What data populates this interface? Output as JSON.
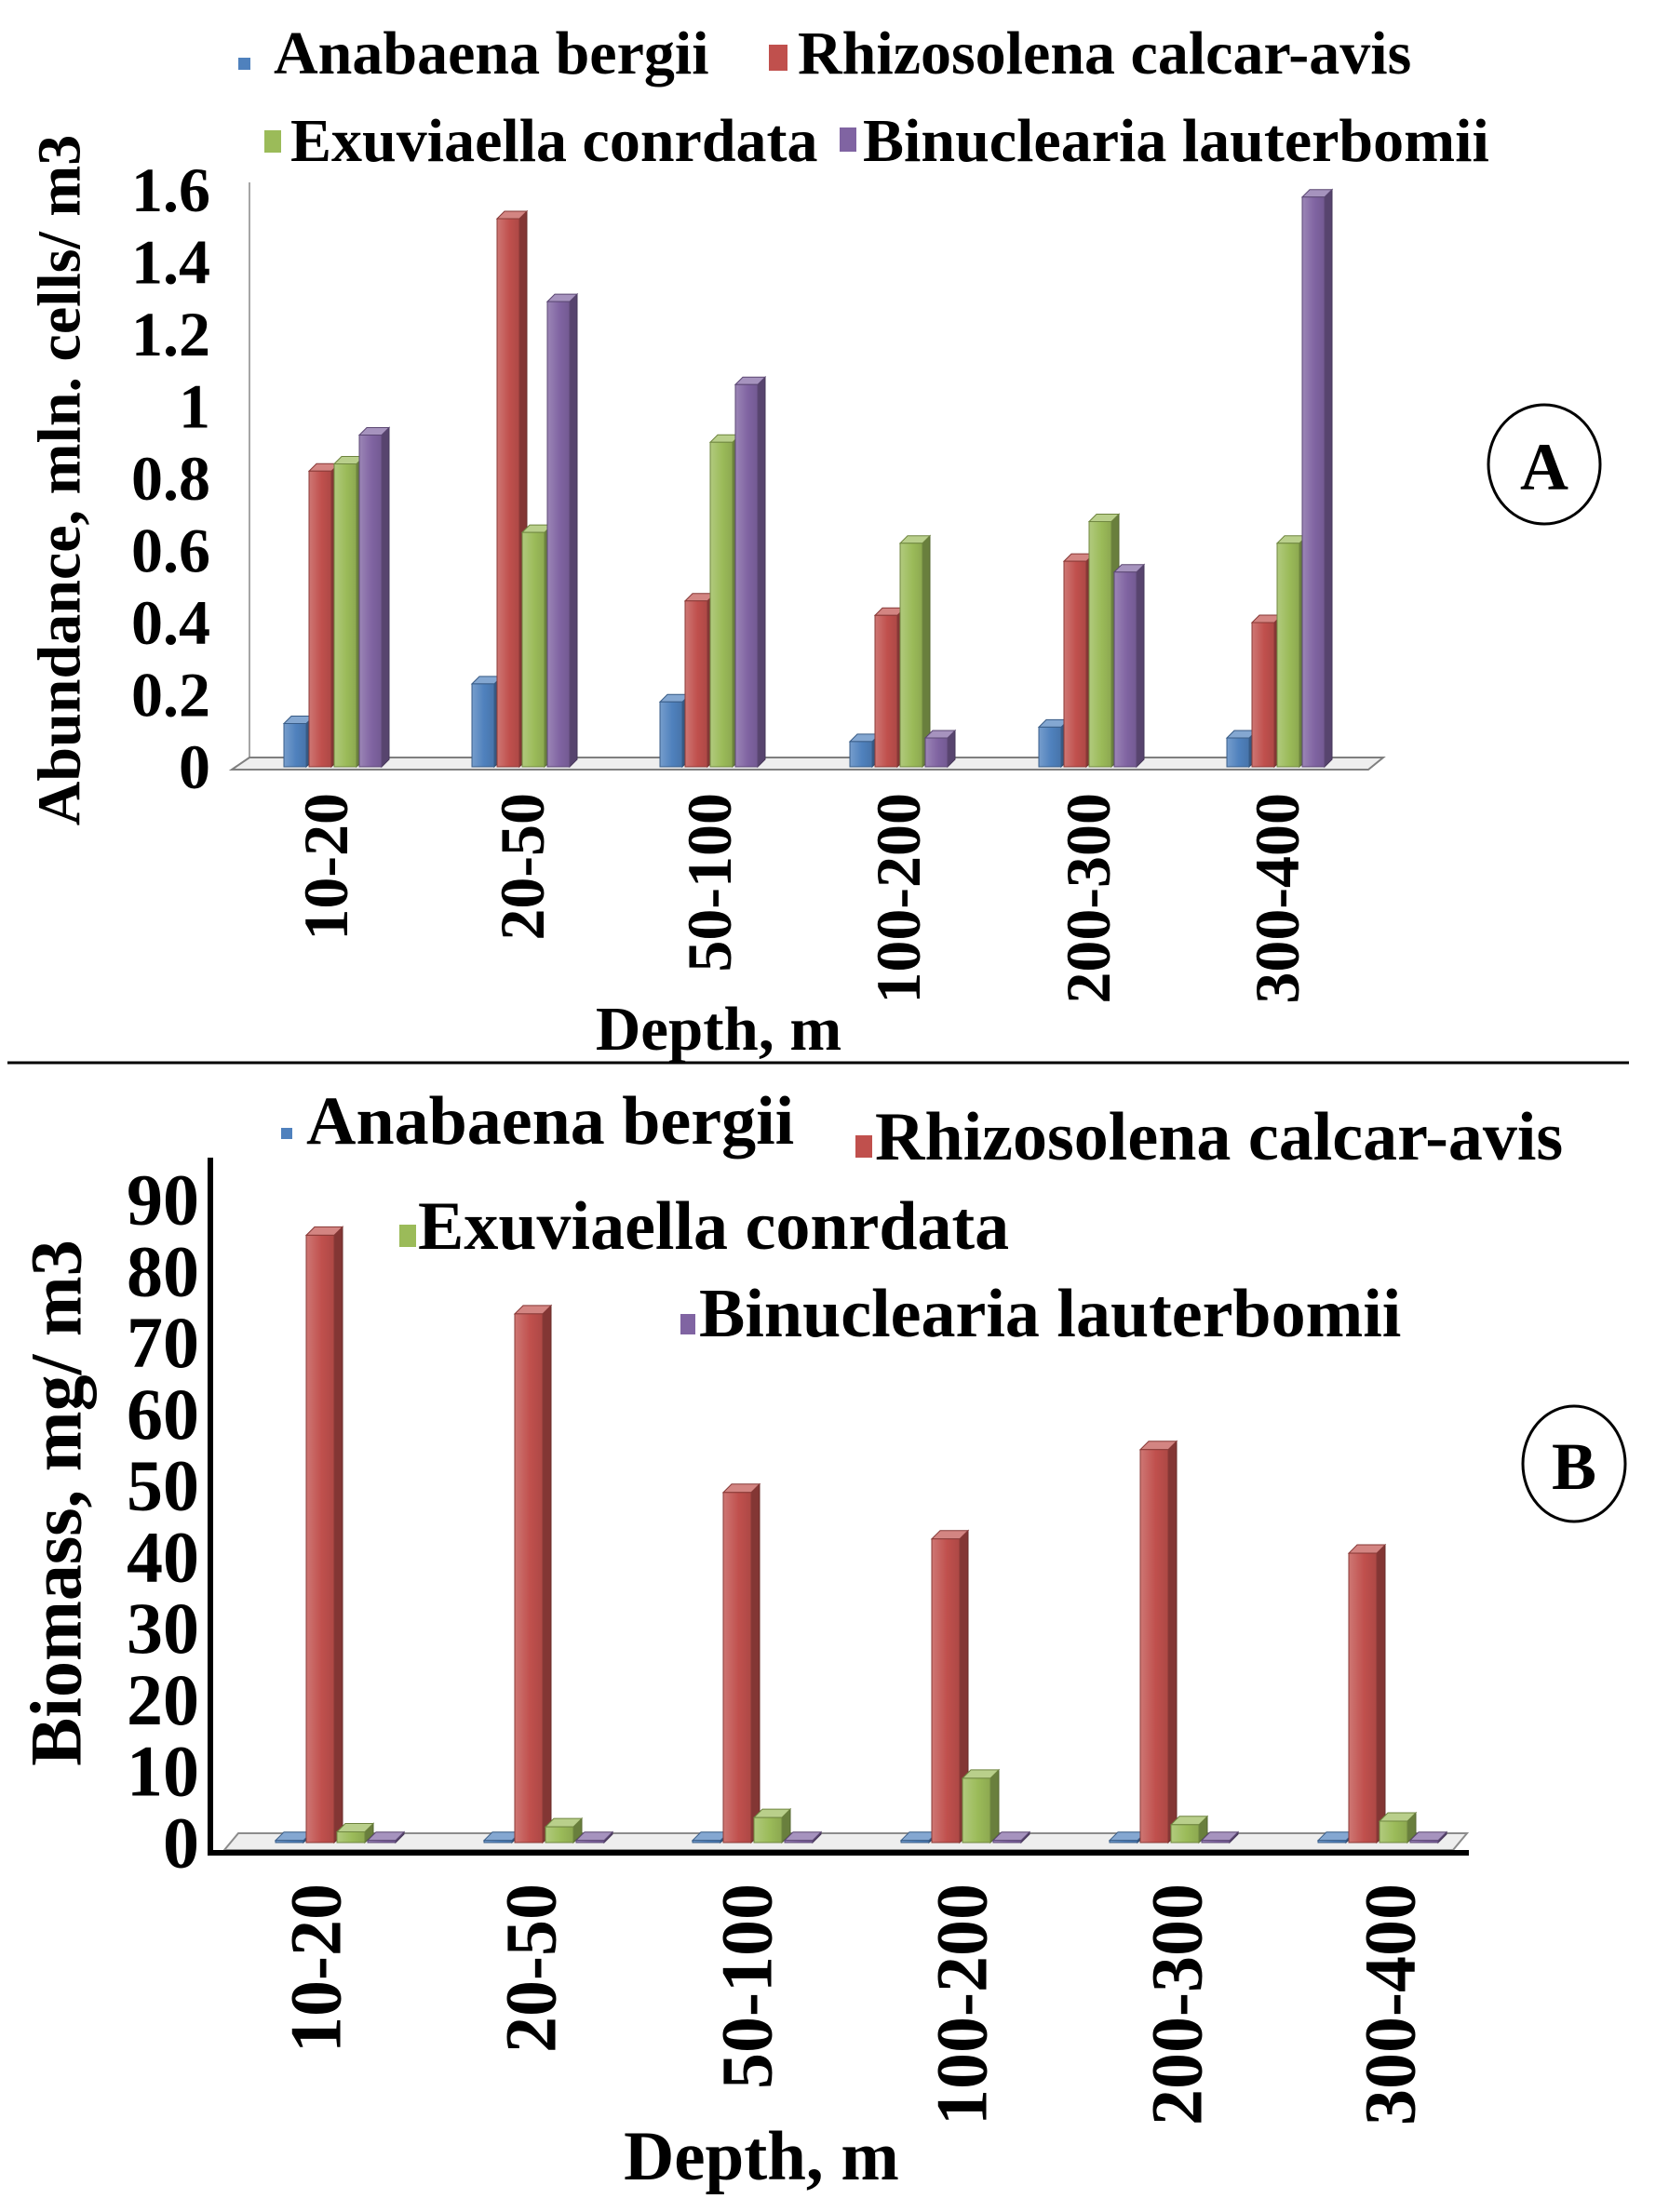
{
  "chart_data": [
    {
      "type": "bar",
      "panel": "A",
      "xlabel": "Depth, m",
      "ylabel": "Abundance, mln. cells/ m3",
      "categories": [
        "10-20",
        "20-50",
        "50-100",
        "100-200",
        "200-300",
        "300-400"
      ],
      "ylim": [
        0,
        1.6
      ],
      "yticks": [
        0,
        0.2,
        0.4,
        0.6,
        0.8,
        1,
        1.2,
        1.4,
        1.6
      ],
      "grid": false,
      "legend_position": "top",
      "series": [
        {
          "name": "Anabaena bergii",
          "color": "#4F81BD",
          "values": [
            0.12,
            0.23,
            0.18,
            0.07,
            0.11,
            0.08
          ]
        },
        {
          "name": "Rhizosolena calcar-avis",
          "color": "#C0504D",
          "values": [
            0.82,
            1.52,
            0.46,
            0.42,
            0.57,
            0.4
          ]
        },
        {
          "name": "Exuviaella conrdata",
          "color": "#9BBB59",
          "values": [
            0.84,
            0.65,
            0.9,
            0.62,
            0.68,
            0.62
          ]
        },
        {
          "name": "Binuclearia lauterbomii",
          "color": "#8064A2",
          "values": [
            0.92,
            1.29,
            1.06,
            0.08,
            0.54,
            1.58
          ]
        }
      ]
    },
    {
      "type": "bar",
      "panel": "B",
      "xlabel": "Depth, m",
      "ylabel": "Biomass, mg/ m3",
      "categories": [
        "10-20",
        "20-50",
        "50-100",
        "100-200",
        "200-300",
        "300-400"
      ],
      "ylim": [
        0,
        90
      ],
      "yticks": [
        0,
        10,
        20,
        30,
        40,
        50,
        60,
        70,
        80,
        90
      ],
      "grid": false,
      "legend_position": "top",
      "series": [
        {
          "name": "Anabaena bergii",
          "color": "#4F81BD",
          "values": [
            0.3,
            0.3,
            0.3,
            0.3,
            0.3,
            0.3
          ]
        },
        {
          "name": "Rhizosolena calcar-avis",
          "color": "#C0504D",
          "values": [
            85,
            74,
            49,
            42.5,
            55,
            40.5
          ]
        },
        {
          "name": "Exuviaella conrdata",
          "color": "#9BBB59",
          "values": [
            1.5,
            2.2,
            3.5,
            9,
            2.5,
            3
          ]
        },
        {
          "name": "Binuclearia lauterbomii",
          "color": "#8064A2",
          "values": [
            0.3,
            0.3,
            0.3,
            0.3,
            0.3,
            0.3
          ]
        }
      ]
    }
  ]
}
